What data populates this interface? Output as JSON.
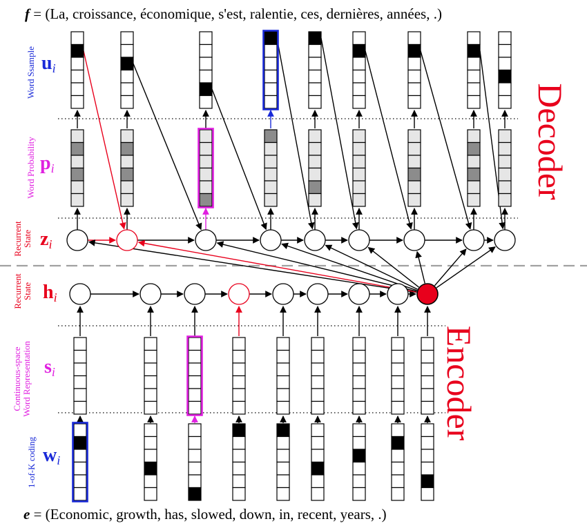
{
  "sentences": {
    "f_symbol": "f",
    "f_text": " = (La, croissance, économique, s'est, ralentie, ces, dernières, années, .)",
    "e_symbol": "e",
    "e_text": " = (Economic, growth, has, slowed, down, in, recent, years, .)"
  },
  "sections": {
    "decoder": "Decoder",
    "encoder": "Encoder"
  },
  "rows": {
    "u": {
      "symbol": "u",
      "sub": "i",
      "label": [
        "Word Ssample"
      ]
    },
    "p": {
      "symbol": "p",
      "sub": "i",
      "label": [
        "Word Probability"
      ]
    },
    "z": {
      "symbol": "z",
      "sub": "i",
      "label": [
        "Recurrent",
        "State"
      ]
    },
    "h": {
      "symbol": "h",
      "sub": "i",
      "label": [
        "Recurrent",
        "State"
      ]
    },
    "s": {
      "symbol": "s",
      "sub": "i",
      "label": [
        "Continuous-space",
        "Word Representation"
      ]
    },
    "w": {
      "symbol": "w",
      "sub": "i",
      "label": [
        "1-of-K coding"
      ]
    }
  },
  "colors": {
    "red": "#e8001c",
    "magenta": "#e020e0",
    "blue": "#1a2ad8",
    "black": "#000000",
    "dark_fill": "#000000",
    "mid_gray": "#8c8c8c",
    "light_gray": "#e6e6e6",
    "separator": "#a0a0a0"
  },
  "encoder": {
    "w_hot_index": [
      1,
      3,
      5,
      0,
      0,
      3,
      2,
      1,
      4
    ],
    "highlight_w": 0,
    "highlight_s": 2,
    "highlight_h": 3,
    "final_state_index": 8
  },
  "decoder": {
    "u_hot_index": [
      1,
      2,
      4,
      0,
      0,
      1,
      1,
      1,
      3
    ],
    "p_shading": [
      [
        "l",
        "m",
        "l",
        "m",
        "l",
        "l"
      ],
      [
        "l",
        "m",
        "l",
        "m",
        "l",
        "l"
      ],
      [
        "l",
        "l",
        "l",
        "l",
        "l",
        "m"
      ],
      [
        "m",
        "l",
        "l",
        "l",
        "l",
        "l"
      ],
      [
        "l",
        "l",
        "l",
        "l",
        "m",
        "l"
      ],
      [
        "l",
        "l",
        "l",
        "l",
        "l",
        "l"
      ],
      [
        "l",
        "l",
        "l",
        "m",
        "l",
        "l"
      ],
      [
        "l",
        "m",
        "l",
        "m",
        "l",
        "l"
      ],
      [
        "l",
        "l",
        "l",
        "l",
        "l",
        "l"
      ]
    ],
    "highlight_p": 2,
    "highlight_u": 3,
    "highlight_z": 1
  }
}
